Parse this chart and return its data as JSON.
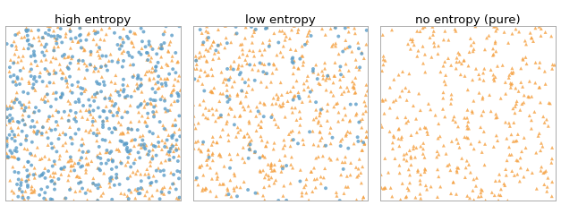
{
  "titles": [
    "high entropy",
    "low entropy",
    "no entropy (pure)"
  ],
  "orange_color": "#f5a142",
  "blue_color": "#5b9dc8",
  "n_high_orange": 500,
  "n_high_blue": 480,
  "n_low_orange": 550,
  "n_low_blue": 100,
  "n_pure_orange": 420,
  "n_pure_blue": 0,
  "marker_size": 8,
  "alpha": 0.8,
  "seed": 7,
  "figsize": [
    6.27,
    2.3
  ],
  "dpi": 100
}
